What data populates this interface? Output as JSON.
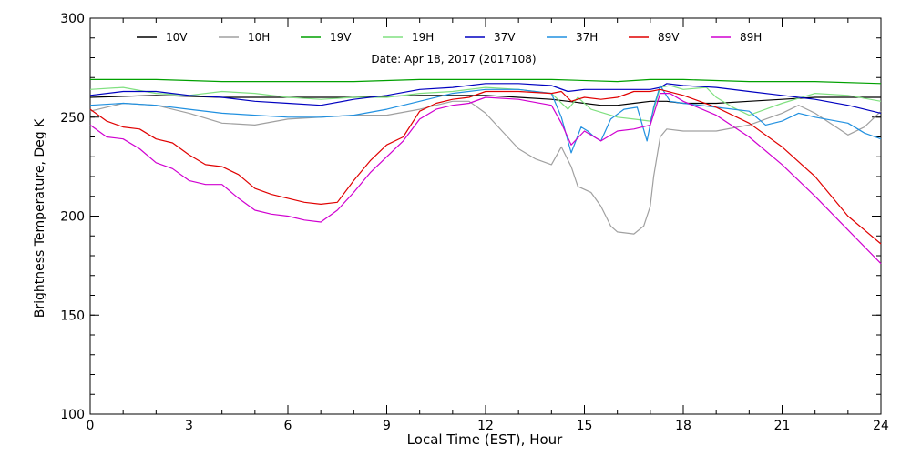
{
  "chart_data": {
    "type": "line",
    "subtitle": "Date: Apr 18, 2017 (2017108)",
    "xlabel": "Local Time (EST), Hour",
    "ylabel": "Brightness Temperature, Deg K",
    "xlim": [
      0,
      24
    ],
    "ylim": [
      100,
      300
    ],
    "xticks": [
      0,
      3,
      6,
      9,
      12,
      15,
      18,
      21,
      24
    ],
    "yticks": [
      100,
      150,
      200,
      250,
      300
    ],
    "grid": false,
    "legend_position": "top",
    "series": [
      {
        "name": "10V",
        "color": "#000000",
        "points": [
          [
            0,
            260
          ],
          [
            2,
            261
          ],
          [
            4,
            260
          ],
          [
            6,
            260
          ],
          [
            8,
            260
          ],
          [
            10,
            261
          ],
          [
            11,
            261
          ],
          [
            12,
            261
          ],
          [
            13,
            260
          ],
          [
            14,
            259
          ],
          [
            14.5,
            258
          ],
          [
            15,
            257
          ],
          [
            15.5,
            256
          ],
          [
            16,
            256
          ],
          [
            16.5,
            257
          ],
          [
            17,
            258
          ],
          [
            17.5,
            258
          ],
          [
            18,
            257
          ],
          [
            19,
            257
          ],
          [
            20,
            258
          ],
          [
            21,
            259
          ],
          [
            22,
            260
          ],
          [
            23,
            260
          ],
          [
            24,
            260
          ]
        ]
      },
      {
        "name": "10H",
        "color": "#a0a0a0",
        "points": [
          [
            0,
            253
          ],
          [
            1,
            257
          ],
          [
            2,
            256
          ],
          [
            3,
            252
          ],
          [
            4,
            247
          ],
          [
            5,
            246
          ],
          [
            6,
            249
          ],
          [
            7,
            250
          ],
          [
            8,
            251
          ],
          [
            9,
            251
          ],
          [
            10,
            254
          ],
          [
            11,
            258
          ],
          [
            11.5,
            258
          ],
          [
            12,
            252
          ],
          [
            12.5,
            243
          ],
          [
            13,
            234
          ],
          [
            13.5,
            229
          ],
          [
            14,
            226
          ],
          [
            14.3,
            235
          ],
          [
            14.6,
            225
          ],
          [
            14.8,
            215
          ],
          [
            15.2,
            212
          ],
          [
            15.5,
            205
          ],
          [
            15.8,
            195
          ],
          [
            16,
            192
          ],
          [
            16.5,
            191
          ],
          [
            16.8,
            195
          ],
          [
            17,
            205
          ],
          [
            17.1,
            220
          ],
          [
            17.3,
            240
          ],
          [
            17.5,
            244
          ],
          [
            18,
            243
          ],
          [
            19,
            243
          ],
          [
            20,
            246
          ],
          [
            21,
            252
          ],
          [
            21.5,
            256
          ],
          [
            22,
            252
          ],
          [
            23,
            241
          ],
          [
            23.5,
            245
          ],
          [
            24,
            253
          ]
        ]
      },
      {
        "name": "19V",
        "color": "#00a000",
        "points": [
          [
            0,
            269
          ],
          [
            2,
            269
          ],
          [
            4,
            268
          ],
          [
            6,
            268
          ],
          [
            8,
            268
          ],
          [
            10,
            269
          ],
          [
            12,
            269
          ],
          [
            14,
            269
          ],
          [
            16,
            268
          ],
          [
            17,
            269
          ],
          [
            18,
            269
          ],
          [
            20,
            268
          ],
          [
            22,
            268
          ],
          [
            24,
            267
          ]
        ]
      },
      {
        "name": "19H",
        "color": "#80e080",
        "points": [
          [
            0,
            264
          ],
          [
            1,
            265
          ],
          [
            2,
            262
          ],
          [
            3,
            261
          ],
          [
            4,
            263
          ],
          [
            5,
            262
          ],
          [
            6,
            260
          ],
          [
            7,
            259
          ],
          [
            8,
            260
          ],
          [
            9,
            260
          ],
          [
            10,
            262
          ],
          [
            11,
            263
          ],
          [
            12,
            265
          ],
          [
            13,
            264
          ],
          [
            14,
            262
          ],
          [
            14.5,
            254
          ],
          [
            14.8,
            260
          ],
          [
            15.2,
            254
          ],
          [
            16,
            250
          ],
          [
            16.5,
            249
          ],
          [
            17,
            248
          ],
          [
            17.3,
            265
          ],
          [
            17.6,
            266
          ],
          [
            18,
            264
          ],
          [
            18.7,
            265
          ],
          [
            19,
            260
          ],
          [
            19.5,
            255
          ],
          [
            20,
            251
          ],
          [
            20.5,
            254
          ],
          [
            21,
            257
          ],
          [
            22,
            262
          ],
          [
            23,
            261
          ],
          [
            24,
            258
          ]
        ]
      },
      {
        "name": "37V",
        "color": "#0000c0",
        "points": [
          [
            0,
            261
          ],
          [
            1,
            263
          ],
          [
            2,
            263
          ],
          [
            3,
            261
          ],
          [
            4,
            260
          ],
          [
            5,
            258
          ],
          [
            6,
            257
          ],
          [
            7,
            256
          ],
          [
            8,
            259
          ],
          [
            9,
            261
          ],
          [
            10,
            264
          ],
          [
            11,
            265
          ],
          [
            12,
            267
          ],
          [
            13,
            267
          ],
          [
            14,
            266
          ],
          [
            14.5,
            263
          ],
          [
            15,
            264
          ],
          [
            16,
            264
          ],
          [
            16.5,
            264
          ],
          [
            17,
            264
          ],
          [
            17.3,
            265
          ],
          [
            17.5,
            267
          ],
          [
            18,
            266
          ],
          [
            19,
            265
          ],
          [
            20,
            263
          ],
          [
            21,
            261
          ],
          [
            22,
            259
          ],
          [
            23,
            256
          ],
          [
            24,
            252
          ]
        ]
      },
      {
        "name": "37H",
        "color": "#2090e0",
        "points": [
          [
            0,
            256
          ],
          [
            1,
            257
          ],
          [
            2,
            256
          ],
          [
            3,
            254
          ],
          [
            4,
            252
          ],
          [
            5,
            251
          ],
          [
            6,
            250
          ],
          [
            7,
            250
          ],
          [
            8,
            251
          ],
          [
            9,
            254
          ],
          [
            10,
            258
          ],
          [
            11,
            262
          ],
          [
            12,
            264
          ],
          [
            13,
            264
          ],
          [
            14,
            262
          ],
          [
            14.3,
            250
          ],
          [
            14.6,
            232
          ],
          [
            14.9,
            245
          ],
          [
            15.1,
            243
          ],
          [
            15.3,
            240
          ],
          [
            15.5,
            238
          ],
          [
            15.8,
            249
          ],
          [
            16.2,
            254
          ],
          [
            16.6,
            255
          ],
          [
            16.9,
            238
          ],
          [
            17.1,
            255
          ],
          [
            17.3,
            266
          ],
          [
            17.6,
            258
          ],
          [
            18,
            257
          ],
          [
            19,
            255
          ],
          [
            20,
            253
          ],
          [
            20.5,
            246
          ],
          [
            21,
            248
          ],
          [
            21.5,
            252
          ],
          [
            22,
            250
          ],
          [
            23,
            247
          ],
          [
            23.5,
            242
          ],
          [
            24,
            239
          ]
        ]
      },
      {
        "name": "89V",
        "color": "#e00000",
        "points": [
          [
            0,
            254
          ],
          [
            0.5,
            248
          ],
          [
            1,
            245
          ],
          [
            1.5,
            244
          ],
          [
            2,
            239
          ],
          [
            2.5,
            237
          ],
          [
            3,
            231
          ],
          [
            3.5,
            226
          ],
          [
            4,
            225
          ],
          [
            4.5,
            221
          ],
          [
            5,
            214
          ],
          [
            5.5,
            211
          ],
          [
            6,
            209
          ],
          [
            6.5,
            207
          ],
          [
            7,
            206
          ],
          [
            7.5,
            207
          ],
          [
            8,
            218
          ],
          [
            8.5,
            228
          ],
          [
            9,
            236
          ],
          [
            9.5,
            240
          ],
          [
            10,
            253
          ],
          [
            10.5,
            257
          ],
          [
            11,
            259
          ],
          [
            11.5,
            260
          ],
          [
            12,
            263
          ],
          [
            13,
            263
          ],
          [
            14,
            262
          ],
          [
            14.3,
            263
          ],
          [
            14.6,
            258
          ],
          [
            15,
            260
          ],
          [
            15.5,
            259
          ],
          [
            16,
            260
          ],
          [
            16.5,
            263
          ],
          [
            17,
            263
          ],
          [
            17.3,
            264
          ],
          [
            18,
            261
          ],
          [
            19,
            255
          ],
          [
            20,
            247
          ],
          [
            21,
            235
          ],
          [
            22,
            220
          ],
          [
            23,
            200
          ],
          [
            24,
            186
          ]
        ]
      },
      {
        "name": "89H",
        "color": "#d000d0",
        "points": [
          [
            0,
            246
          ],
          [
            0.5,
            240
          ],
          [
            1,
            239
          ],
          [
            1.5,
            234
          ],
          [
            2,
            227
          ],
          [
            2.5,
            224
          ],
          [
            3,
            218
          ],
          [
            3.5,
            216
          ],
          [
            4,
            216
          ],
          [
            4.5,
            209
          ],
          [
            5,
            203
          ],
          [
            5.5,
            201
          ],
          [
            6,
            200
          ],
          [
            6.5,
            198
          ],
          [
            7,
            197
          ],
          [
            7.5,
            203
          ],
          [
            8,
            212
          ],
          [
            8.5,
            222
          ],
          [
            9,
            230
          ],
          [
            9.5,
            238
          ],
          [
            10,
            249
          ],
          [
            10.5,
            254
          ],
          [
            11,
            256
          ],
          [
            11.5,
            257
          ],
          [
            12,
            260
          ],
          [
            13,
            259
          ],
          [
            14,
            256
          ],
          [
            14.3,
            247
          ],
          [
            14.6,
            236
          ],
          [
            15,
            243
          ],
          [
            15.5,
            238
          ],
          [
            16,
            243
          ],
          [
            16.5,
            244
          ],
          [
            17,
            246
          ],
          [
            17.3,
            262
          ],
          [
            17.6,
            262
          ],
          [
            18,
            258
          ],
          [
            19,
            251
          ],
          [
            20,
            240
          ],
          [
            21,
            226
          ],
          [
            22,
            210
          ],
          [
            23,
            193
          ],
          [
            24,
            176
          ]
        ]
      }
    ]
  }
}
